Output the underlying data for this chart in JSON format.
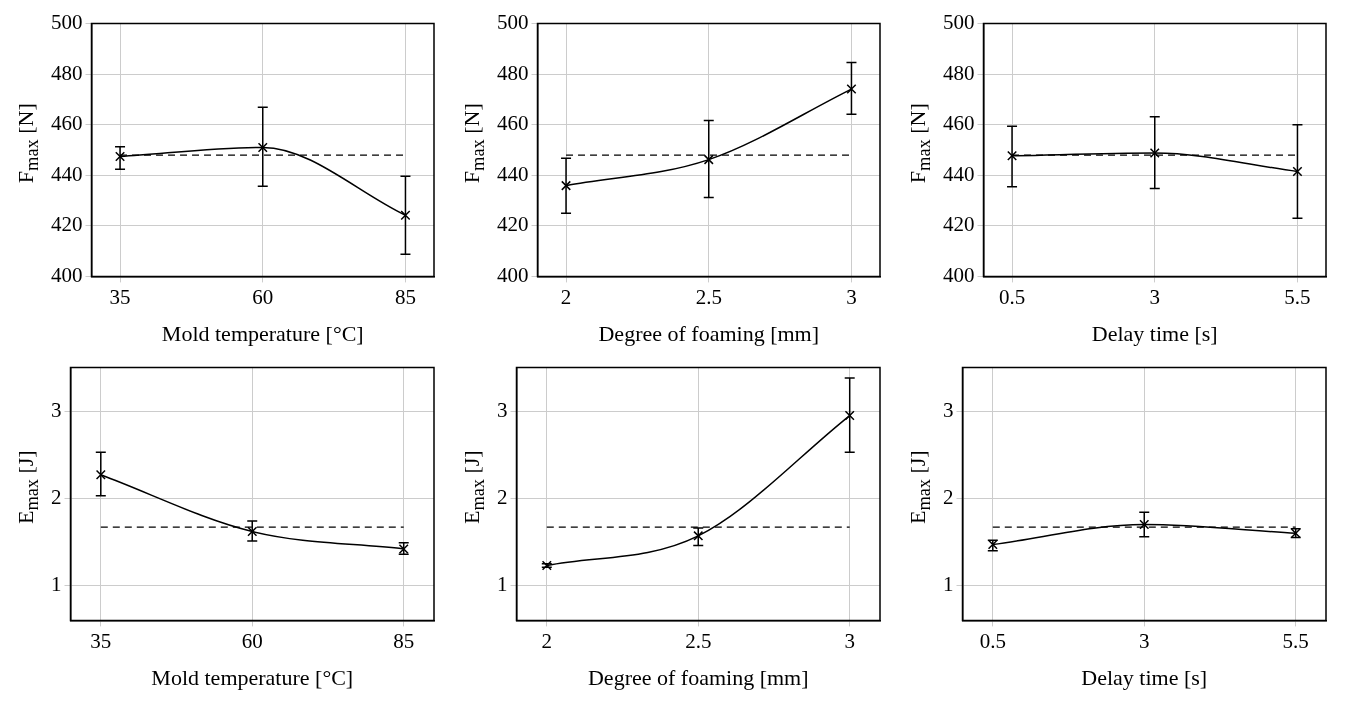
{
  "chart_data": [
    {
      "type": "line",
      "x": [
        35,
        60,
        85
      ],
      "values": [
        447.4,
        451.0,
        424.2
      ],
      "errors": [
        [
          442.4,
          451.3
        ],
        [
          435.7,
          466.9
        ],
        [
          408.8,
          439.6
        ]
      ],
      "color": "#000000",
      "marker": "cross",
      "xlim": [
        30,
        90
      ],
      "xticks": [
        35,
        60,
        85
      ],
      "ylim": [
        400,
        500
      ],
      "yticks": [
        400,
        420,
        440,
        460,
        480,
        500
      ],
      "xlabel": "Mold temperature [°C]",
      "ylabel": "F$_{max}$ [N]",
      "grid": true,
      "ref_lines": [
        {
          "axis": "y",
          "value": 448,
          "line_style": "dashed",
          "color": "#000000"
        }
      ]
    },
    {
      "type": "line",
      "x": [
        2,
        2.5,
        3
      ],
      "values": [
        435.9,
        446.2,
        474.1
      ],
      "errors": [
        [
          425.0,
          446.7
        ],
        [
          431.2,
          461.7
        ],
        [
          464.1,
          484.6
        ]
      ],
      "color": "#000000",
      "marker": "cross",
      "xlim": [
        1.9,
        3.1
      ],
      "xticks": [
        2,
        2.5,
        3
      ],
      "ylim": [
        400,
        500
      ],
      "yticks": [
        400,
        420,
        440,
        460,
        480,
        500
      ],
      "xlabel": "Degree of foaming [mm]",
      "ylabel": "F$_{max}$ [N]",
      "grid": true,
      "ref_lines": [
        {
          "axis": "y",
          "value": 448,
          "line_style": "dashed",
          "color": "#000000"
        }
      ]
    },
    {
      "type": "line",
      "x": [
        0.5,
        3,
        5.5
      ],
      "values": [
        447.7,
        448.8,
        441.5
      ],
      "errors": [
        [
          435.5,
          459.4
        ],
        [
          434.8,
          463.2
        ],
        [
          423.0,
          460.0
        ]
      ],
      "color": "#000000",
      "marker": "cross",
      "xlim": [
        0,
        6
      ],
      "xticks": [
        0.5,
        3,
        5.5
      ],
      "ylim": [
        400,
        500
      ],
      "yticks": [
        400,
        420,
        440,
        460,
        480,
        500
      ],
      "xlabel": "Delay time [s]",
      "ylabel": "F$_{max}$ [N]",
      "grid": true,
      "ref_lines": [
        {
          "axis": "y",
          "value": 448,
          "line_style": "dashed",
          "color": "#000000"
        }
      ]
    },
    {
      "type": "line",
      "x": [
        35,
        60,
        85
      ],
      "values": [
        2.27,
        1.62,
        1.42
      ],
      "errors": [
        [
          2.03,
          2.53
        ],
        [
          1.51,
          1.74
        ],
        [
          1.36,
          1.49
        ]
      ],
      "color": "#000000",
      "marker": "cross",
      "xlim": [
        30,
        90
      ],
      "xticks": [
        35,
        60,
        85
      ],
      "ylim": [
        0.6,
        3.5
      ],
      "yticks": [
        1,
        2,
        3
      ],
      "xlabel": "Mold temperature [°C]",
      "ylabel": "E$_{max}$ [J]",
      "grid": true,
      "ref_lines": [
        {
          "axis": "y",
          "value": 1.67,
          "line_style": "dashed",
          "color": "#000000"
        }
      ]
    },
    {
      "type": "line",
      "x": [
        2,
        2.5,
        3
      ],
      "values": [
        1.23,
        1.57,
        2.95
      ],
      "errors": [
        [
          1.21,
          1.25
        ],
        [
          1.46,
          1.66
        ],
        [
          2.53,
          3.38
        ]
      ],
      "color": "#000000",
      "marker": "cross",
      "xlim": [
        1.9,
        3.1
      ],
      "xticks": [
        2,
        2.5,
        3
      ],
      "ylim": [
        0.6,
        3.5
      ],
      "yticks": [
        1,
        2,
        3
      ],
      "xlabel": "Degree of foaming [mm]",
      "ylabel": "E$_{max}$ [J]",
      "grid": true,
      "ref_lines": [
        {
          "axis": "y",
          "value": 1.67,
          "line_style": "dashed",
          "color": "#000000"
        }
      ]
    },
    {
      "type": "line",
      "x": [
        0.5,
        3,
        5.5
      ],
      "values": [
        1.47,
        1.7,
        1.6
      ],
      "errors": [
        [
          1.4,
          1.52
        ],
        [
          1.56,
          1.84
        ],
        [
          1.55,
          1.65
        ]
      ],
      "color": "#000000",
      "marker": "cross",
      "xlim": [
        0,
        6
      ],
      "xticks": [
        0.5,
        3,
        5.5
      ],
      "ylim": [
        0.6,
        3.5
      ],
      "yticks": [
        1,
        2,
        3
      ],
      "xlabel": "Delay time [s]",
      "ylabel": "E$_{max}$ [J]",
      "grid": true,
      "ref_lines": [
        {
          "axis": "y",
          "value": 1.67,
          "line_style": "dashed",
          "color": "#000000"
        }
      ]
    }
  ]
}
